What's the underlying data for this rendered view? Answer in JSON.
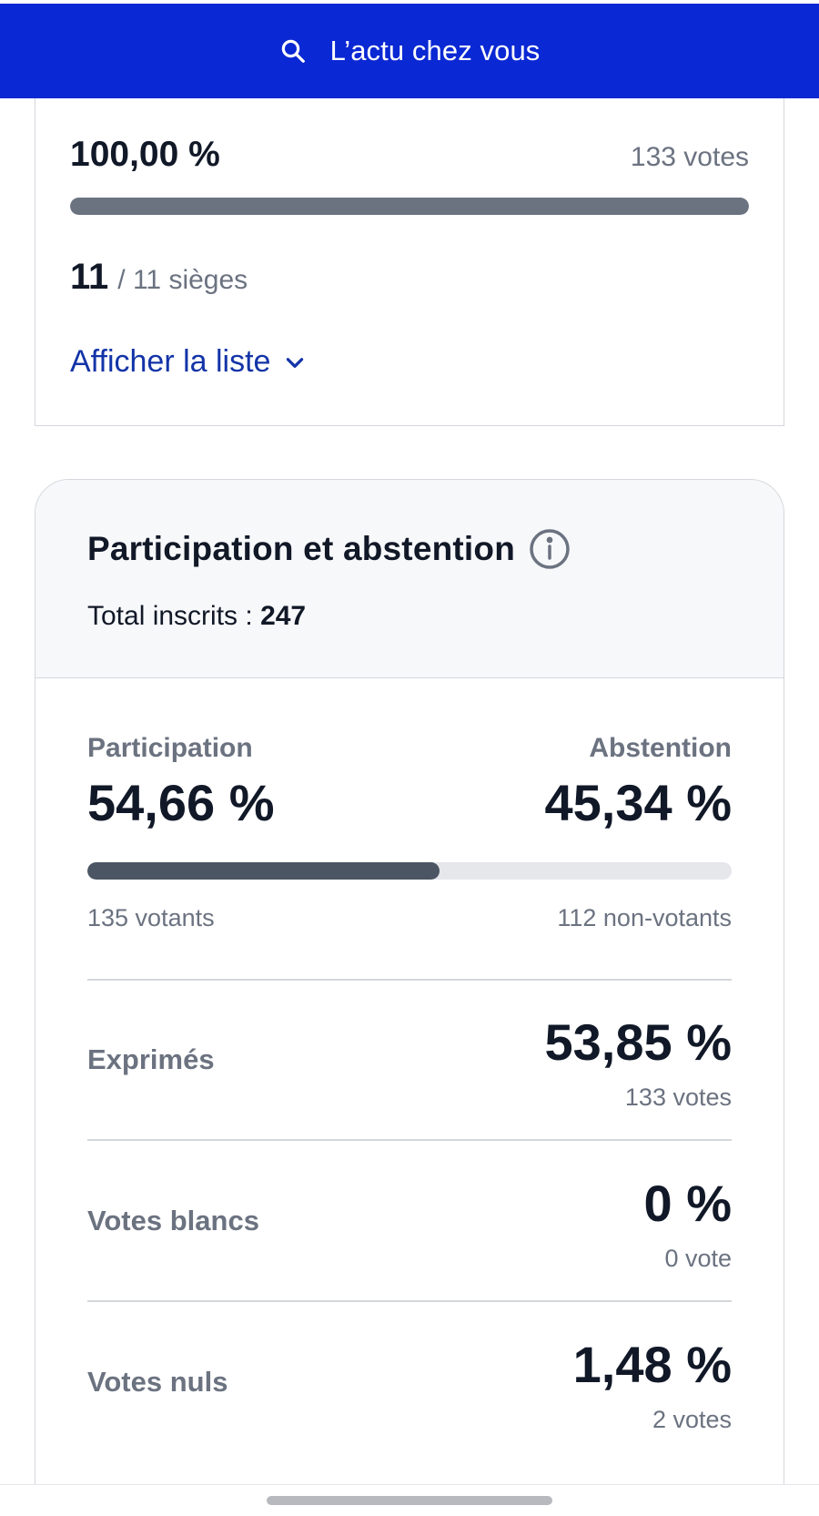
{
  "header": {
    "search_label": "L’actu chez vous",
    "background_color": "#0a28d3",
    "icon": "search-icon"
  },
  "seats_card": {
    "percent": "100,00 %",
    "votes": "133 votes",
    "progress_fraction": 1.0,
    "seats_won": "11",
    "seats_total": "/ 11 sièges",
    "show_list_label": "Afficher la liste",
    "show_list_icon": "chevron-down-icon",
    "link_color": "#1334a8"
  },
  "participation": {
    "title": "Participation et abstention",
    "info_icon": "info-icon",
    "total_label": "Total inscrits : ",
    "total_value": "247",
    "participation_label": "Participation",
    "abstention_label": "Abstention",
    "participation_pct": "54,66 %",
    "abstention_pct": "45,34 %",
    "participation_fraction": 0.5466,
    "voters": "135 votants",
    "non_voters": "112 non-votants",
    "rows": [
      {
        "label": "Exprimés",
        "pct": "53,85 %",
        "votes": "133 votes"
      },
      {
        "label": "Votes blancs",
        "pct": "0 %",
        "votes": "0 vote"
      },
      {
        "label": "Votes nuls",
        "pct": "1,48 %",
        "votes": "2 votes"
      }
    ]
  }
}
